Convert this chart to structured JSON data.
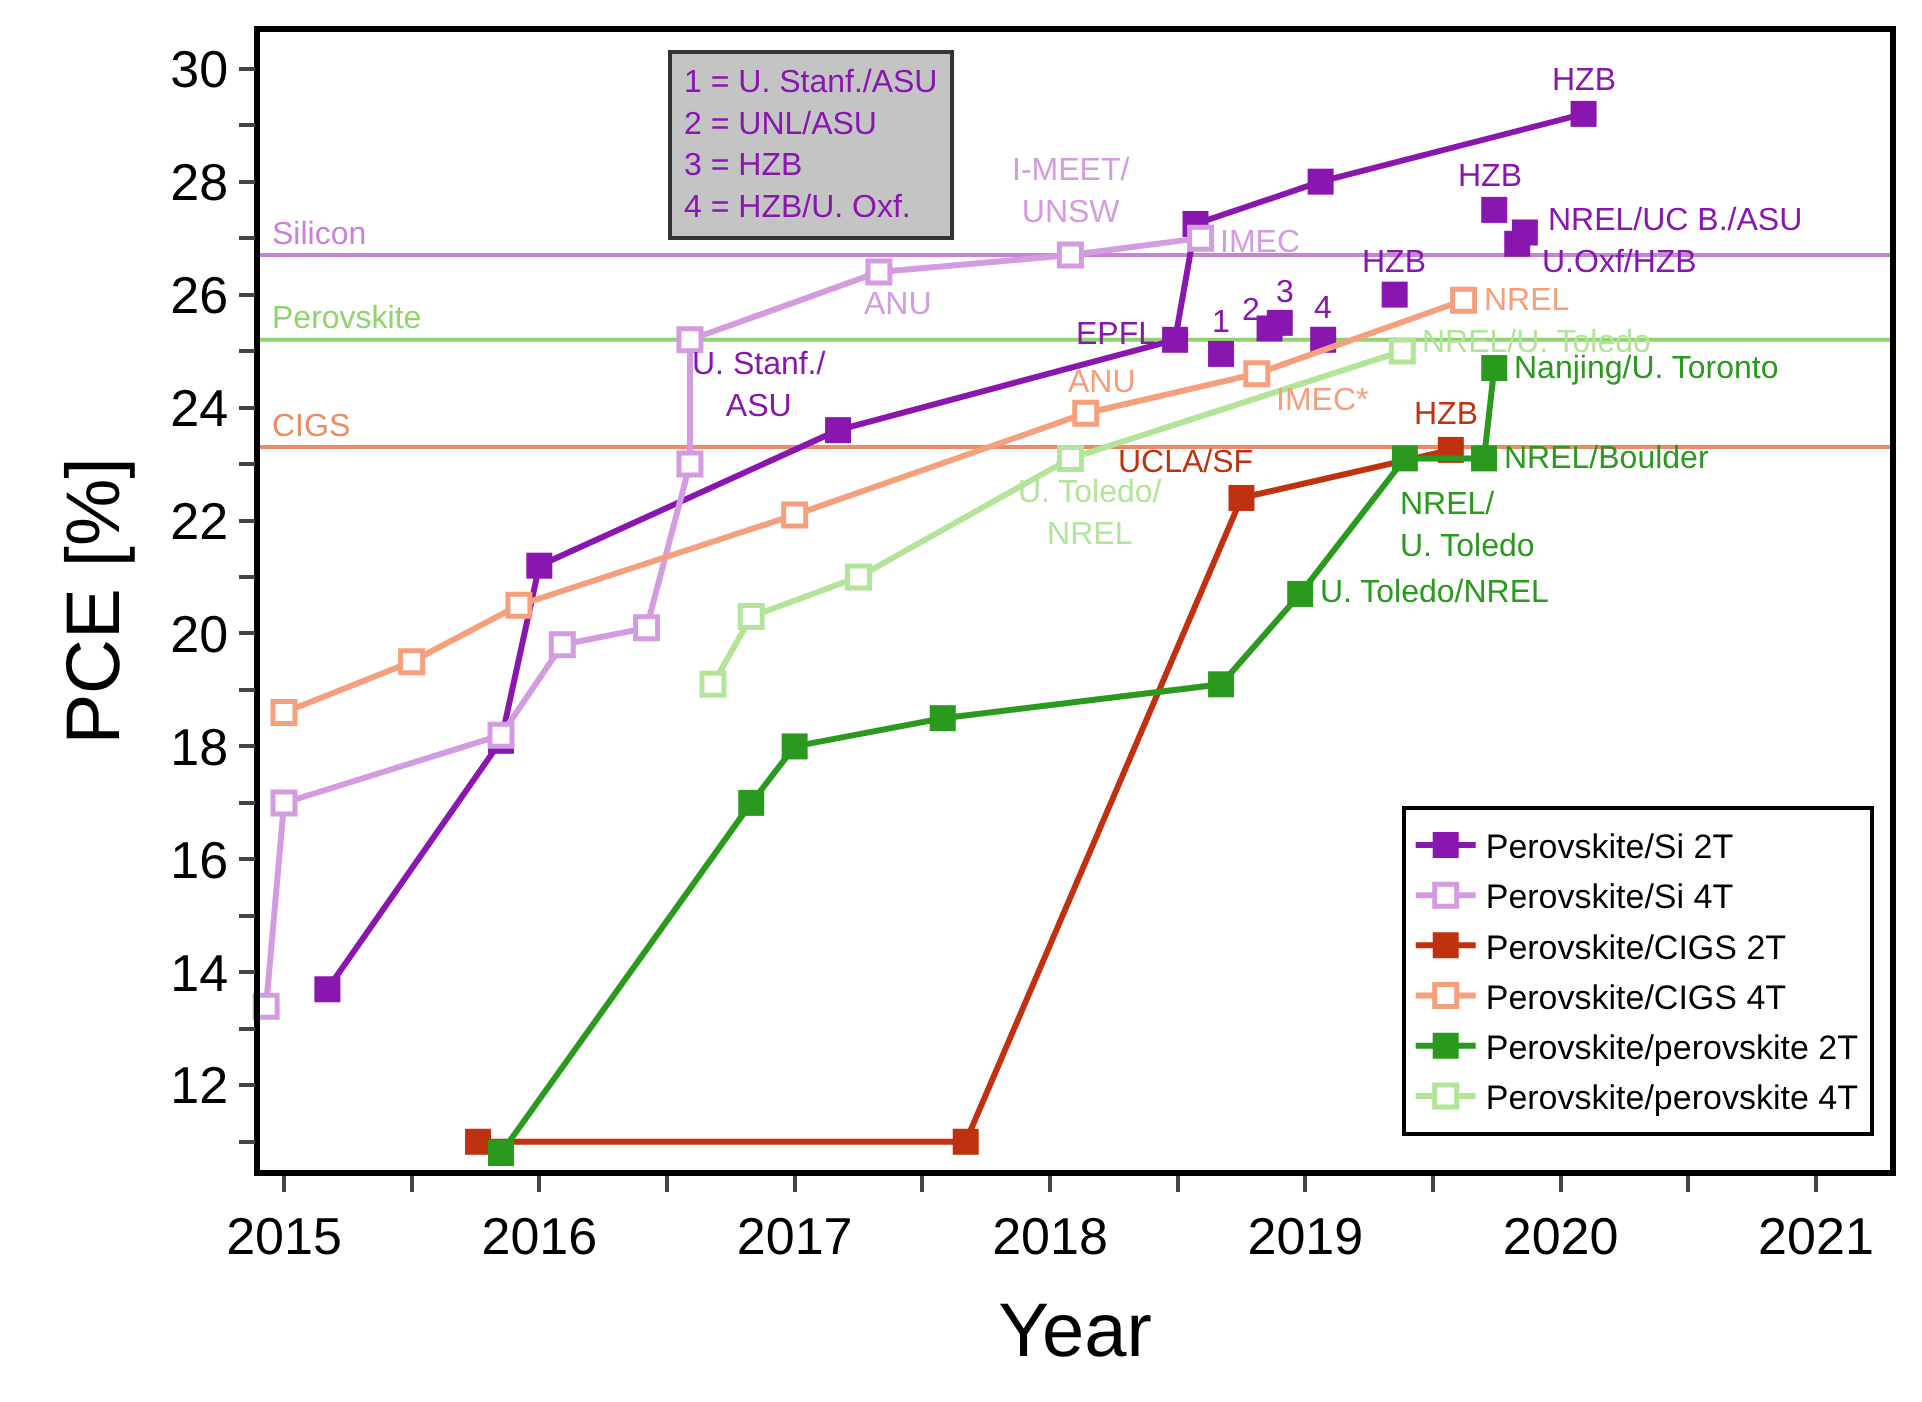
{
  "chart_data": {
    "type": "line",
    "xlabel": "Year",
    "ylabel": "PCE [%]",
    "xlim": [
      2014.906,
      2021.29
    ],
    "ylim": [
      10.5,
      30.65
    ],
    "xticks": [
      2015,
      {
        "value": 2015.5,
        "label": null
      },
      2016,
      {
        "value": 2016.5,
        "label": null
      },
      2017,
      {
        "value": 2017.5,
        "label": null
      },
      2018,
      {
        "value": 2018.5,
        "label": null
      },
      2019,
      {
        "value": 2019.5,
        "label": null
      },
      2020,
      {
        "value": 2020.5,
        "label": null
      },
      2021
    ],
    "yticks": [
      {
        "value": 11,
        "label": null
      },
      12,
      {
        "value": 13,
        "label": null
      },
      14,
      {
        "value": 15,
        "label": null
      },
      16,
      {
        "value": 17,
        "label": null
      },
      18,
      {
        "value": 19,
        "label": null
      },
      20,
      {
        "value": 21,
        "label": null
      },
      22,
      {
        "value": 23,
        "label": null
      },
      24,
      {
        "value": 25,
        "label": null
      },
      26,
      {
        "value": 27,
        "label": null
      },
      28,
      {
        "value": 29,
        "label": null
      },
      30
    ],
    "grid": false,
    "legend": "bottom right",
    "line_style": "solid",
    "series": [
      {
        "name": "Perovskite/Si 2T",
        "color": "#8a16b0",
        "marker": "square",
        "x": [
          2015.17,
          2015.85,
          2016.0,
          2017.17,
          2018.49,
          2018.57,
          2019.06,
          2020.09
        ],
        "values": [
          13.7,
          18.1,
          21.2,
          23.6,
          25.2,
          27.25,
          28.0,
          29.2
        ]
      },
      {
        "type": "scatter",
        "color": "#8a16b0",
        "marker": "square",
        "x": [
          2018.67,
          2018.86,
          2018.9,
          2019.07,
          2019.35,
          2019.74,
          2019.86,
          2019.83
        ],
        "values": [
          24.95,
          25.4,
          25.5,
          25.2,
          26.0,
          27.5,
          27.1,
          26.9
        ]
      },
      {
        "name": "Perovskite/Si 4T",
        "color": "#d49ce0",
        "marker": "square-open",
        "x": [
          2014.93,
          2015.0,
          2015.85,
          2016.09,
          2016.42,
          2016.59,
          2016.59,
          2017.33,
          2018.08,
          2018.59
        ],
        "values": [
          13.4,
          17.0,
          18.2,
          19.8,
          20.1,
          23.0,
          25.2,
          26.4,
          26.7,
          27.0
        ]
      },
      {
        "name": "Perovskite/CIGS 2T",
        "color": "#c0320f",
        "marker": "square",
        "x": [
          2015.76,
          2017.67,
          2018.75,
          2019.57
        ],
        "values": [
          11.0,
          11.0,
          22.4,
          23.25
        ]
      },
      {
        "name": "Perovskite/CIGS 4T",
        "color": "#f4a07c",
        "marker": "square-open",
        "x": [
          2015.0,
          2015.5,
          2015.92,
          2017.0,
          2018.14,
          2018.81,
          2019.62
        ],
        "values": [
          18.6,
          19.5,
          20.5,
          22.1,
          23.9,
          24.6,
          25.9
        ]
      },
      {
        "name": "Perovskite/perovskite 2T",
        "color": "#2a9a1e",
        "marker": "square",
        "x": [
          2015.85,
          2016.83,
          2017.0,
          2017.58,
          2018.67,
          2018.98,
          2019.39,
          2019.7,
          2019.74
        ],
        "values": [
          10.8,
          17.0,
          18.0,
          18.5,
          19.1,
          20.7,
          23.1,
          23.1,
          24.7
        ]
      },
      {
        "name": "Perovskite/perovskite 4T",
        "color": "#b2e49a",
        "marker": "square-open",
        "x": [
          2016.68,
          2016.83,
          2017.25,
          2018.08,
          2019.38
        ],
        "values": [
          19.1,
          20.3,
          21.0,
          23.1,
          25.0
        ]
      }
    ],
    "ref_lines": [
      {
        "axis": "y",
        "value": 26.7,
        "label": "Silicon",
        "color": "#c783d6"
      },
      {
        "axis": "y",
        "value": 25.2,
        "label": "Perovskite",
        "color": "#8fd46c"
      },
      {
        "axis": "y",
        "value": 23.3,
        "label": "CIGS",
        "color": "#ef8a66"
      }
    ],
    "annotations": [
      "1 = U. Stanf./ASU",
      "2 = UNL/ASU",
      "3 = HZB",
      "4 = HZB/U. Oxf.",
      {
        "text": "U. Stanf./\nASU",
        "x": 2017.17,
        "y": 23.6
      },
      {
        "text": "EPFL",
        "x": 2018.49,
        "y": 25.2
      },
      {
        "text": "HZB",
        "x": 2020.09,
        "y": 29.2
      },
      {
        "text": "HZB",
        "x": 2019.35,
        "y": 26.0
      },
      {
        "text": "HZB",
        "x": 2019.74,
        "y": 27.5
      },
      {
        "text": "NREL/UC B./ASU",
        "x": 2019.86,
        "y": 27.1
      },
      {
        "text": "U.Oxf/HZB",
        "x": 2019.83,
        "y": 26.9
      },
      {
        "text": "1",
        "x": 2018.67,
        "y": 24.95
      },
      {
        "text": "2",
        "x": 2018.86,
        "y": 25.4
      },
      {
        "text": "3",
        "x": 2018.9,
        "y": 25.5
      },
      {
        "text": "4",
        "x": 2019.07,
        "y": 25.2
      },
      {
        "text": "I-MEET/\nUNSW",
        "x": 2018.08,
        "y": 26.7
      },
      {
        "text": "IMEC",
        "x": 2018.59,
        "y": 27.0
      },
      {
        "text": "ANU",
        "x": 2017.33,
        "y": 26.4
      },
      {
        "text": "ANU",
        "x": 2018.14,
        "y": 23.9
      },
      {
        "text": "IMEC*",
        "x": 2018.81,
        "y": 24.6
      },
      {
        "text": "NREL",
        "x": 2019.62,
        "y": 25.9
      },
      {
        "text": "UCLA/SF",
        "x": 2018.75,
        "y": 22.4
      },
      {
        "text": "HZB",
        "x": 2019.57,
        "y": 23.25
      },
      {
        "text": "NREL/U. Toledo",
        "x": 2019.38,
        "y": 25.0
      },
      {
        "text": "U. Toledo/\nNREL",
        "x": 2018.08,
        "y": 23.1
      },
      {
        "text": "NREL/\nU. Toledo",
        "x": 2019.39,
        "y": 23.1
      },
      {
        "text": "NREL/Boulder",
        "x": 2019.7,
        "y": 23.1
      },
      {
        "text": "Nanjing/U. Toronto",
        "x": 2019.74,
        "y": 24.7
      },
      {
        "text": "U. Toledo/NREL",
        "x": 2018.98,
        "y": 20.7
      }
    ]
  }
}
